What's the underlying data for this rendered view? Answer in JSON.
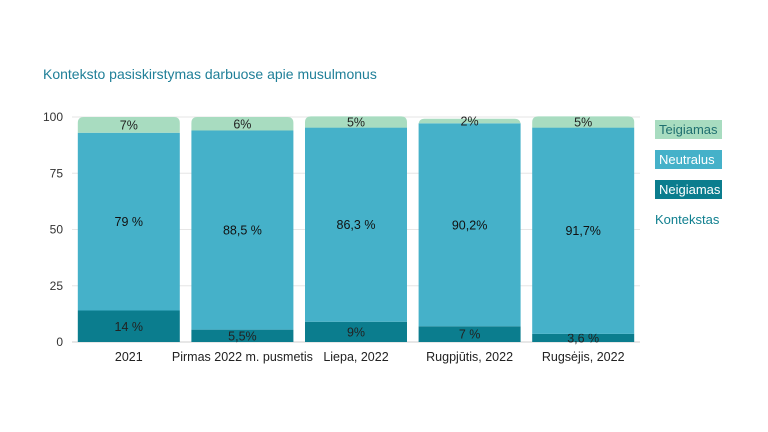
{
  "title": "Konteksto pasiskirstymas darbuose apie musulmonus",
  "legend": {
    "items": [
      {
        "label": "Teigiamas",
        "color": "#a8dcc0",
        "text_color": "#1f6f70"
      },
      {
        "label": "Neutralus",
        "color": "#45b1c9",
        "text_color": "#ffffff"
      },
      {
        "label": "Neigiamas",
        "color": "#0b7d8e",
        "text_color": "#ffffff"
      }
    ],
    "title": "Kontekstas"
  },
  "chart_data": {
    "type": "bar",
    "stacked": true,
    "categories": [
      "2021",
      "Pirmas 2022 m. pusmetis",
      "Liepa, 2022",
      "Rugpjūtis, 2022",
      "Rugsėjis, 2022"
    ],
    "series": [
      {
        "name": "Neigiamas",
        "color": "#0b7d8e",
        "values": [
          14,
          5.5,
          9,
          7,
          3.6
        ],
        "labels": [
          "14 %",
          "5,5%",
          "9%",
          "7 %",
          "3,6 %"
        ]
      },
      {
        "name": "Neutralus",
        "color": "#45b1c9",
        "values": [
          79,
          88.5,
          86.3,
          90.2,
          91.7
        ],
        "labels": [
          "79 %",
          "88,5 %",
          "86,3 %",
          "90,2%",
          "91,7%"
        ]
      },
      {
        "name": "Teigiamas",
        "color": "#a8dcc0",
        "values": [
          7,
          6,
          5,
          2,
          5
        ],
        "labels": [
          "7%",
          "6%",
          "5%",
          "2%",
          "5%"
        ]
      }
    ],
    "ylim": [
      0,
      100
    ],
    "yticks": [
      "0",
      "25",
      "50",
      "75",
      "100"
    ],
    "grid": true,
    "legend_position": "right"
  }
}
